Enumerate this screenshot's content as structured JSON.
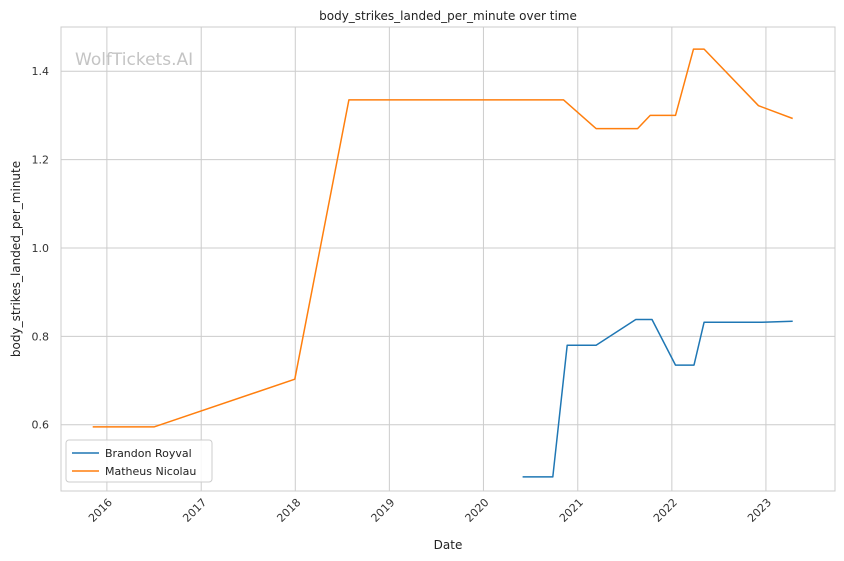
{
  "chart_data": {
    "type": "line",
    "title": "body_strikes_landed_per_minute over time",
    "xlabel": "Date",
    "ylabel": "body_strikes_landed_per_minute",
    "watermark": "WolfTickets.AI",
    "x_ticks": [
      "2016",
      "2017",
      "2018",
      "2019",
      "2020",
      "2021",
      "2022",
      "2023"
    ],
    "y_ticks": [
      "0.6",
      "0.8",
      "1.0",
      "1.2",
      "1.4"
    ],
    "xlim": [
      "2015-07-07",
      "2023-09-26"
    ],
    "ylim": [
      0.45,
      1.5
    ],
    "grid": true,
    "legend_position": "lower-left",
    "series": [
      {
        "name": "Brandon Royval",
        "color": "#1f77b4",
        "points": [
          [
            "2020-06-01",
            0.482
          ],
          [
            "2020-09-26",
            0.482
          ],
          [
            "2020-11-21",
            0.78
          ],
          [
            "2021-03-13",
            0.78
          ],
          [
            "2021-08-14",
            0.838
          ],
          [
            "2021-10-16",
            0.838
          ],
          [
            "2022-01-15",
            0.735
          ],
          [
            "2022-03-28",
            0.735
          ],
          [
            "2022-05-06",
            0.832
          ],
          [
            "2022-12-17",
            0.832
          ],
          [
            "2023-04-15",
            0.834
          ]
        ]
      },
      {
        "name": "Matheus Nicolau",
        "color": "#ff7f0e",
        "points": [
          [
            "2015-11-07",
            0.595
          ],
          [
            "2016-07-02",
            0.595
          ],
          [
            "2017-12-30",
            0.703
          ],
          [
            "2018-07-28",
            1.335
          ],
          [
            "2020-11-07",
            1.335
          ],
          [
            "2021-03-13",
            1.27
          ],
          [
            "2021-08-21",
            1.27
          ],
          [
            "2021-10-09",
            1.3
          ],
          [
            "2022-01-15",
            1.3
          ],
          [
            "2022-03-26",
            1.45
          ],
          [
            "2022-05-06",
            1.45
          ],
          [
            "2022-12-03",
            1.322
          ],
          [
            "2023-04-15",
            1.293
          ]
        ]
      }
    ]
  }
}
